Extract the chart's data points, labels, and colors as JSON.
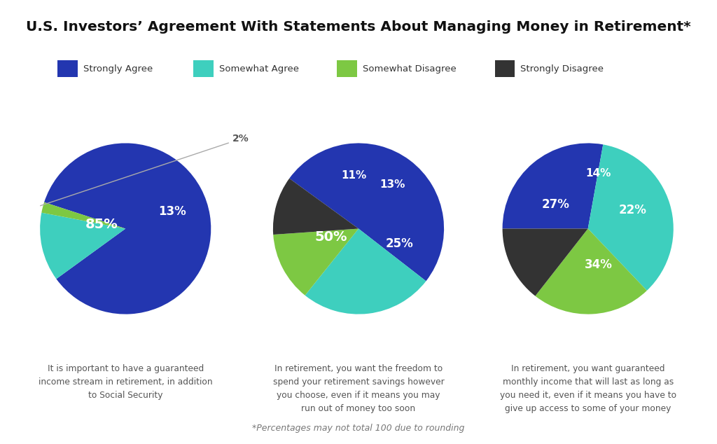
{
  "title": "U.S. Investors’ Agreement With Statements About Managing Money in Retirement*",
  "title_fontsize": 14.5,
  "background_color": "#ffffff",
  "legend_labels": [
    "Strongly Agree",
    "Somewhat Agree",
    "Somewhat Disagree",
    "Strongly Disagree"
  ],
  "colors": {
    "strongly_agree": "#2336B0",
    "somewhat_agree": "#3ECFBE",
    "somewhat_disagree": "#7DC843",
    "strongly_disagree": "#333333"
  },
  "charts": [
    {
      "slice_values": [
        85,
        13,
        2
      ],
      "slice_colors": [
        "strongly_agree",
        "somewhat_agree",
        "somewhat_disagree"
      ],
      "slice_labels": [
        "85%",
        "13%",
        "2%"
      ],
      "label_inside": [
        true,
        true,
        false
      ],
      "startangle": 162,
      "counterclock": false,
      "caption": "It is important to have a guaranteed\nincome stream in retirement, in addition\nto Social Security"
    },
    {
      "slice_values": [
        50,
        25,
        13,
        11
      ],
      "slice_colors": [
        "strongly_agree",
        "somewhat_agree",
        "somewhat_disagree",
        "strongly_disagree"
      ],
      "slice_labels": [
        "50%",
        "25%",
        "13%",
        "11%"
      ],
      "label_inside": [
        true,
        true,
        true,
        true
      ],
      "startangle": 144,
      "counterclock": false,
      "caption": "In retirement, you want the freedom to\nspend your retirement savings however\nyou choose, even if it means you may\nrun out of money too soon"
    },
    {
      "slice_values": [
        27,
        34,
        22,
        14
      ],
      "slice_colors": [
        "strongly_agree",
        "somewhat_agree",
        "somewhat_disagree",
        "strongly_disagree"
      ],
      "slice_labels": [
        "27%",
        "34%",
        "22%",
        "14%"
      ],
      "label_inside": [
        true,
        true,
        true,
        true
      ],
      "startangle": 180,
      "counterclock": false,
      "caption": "In retirement, you want guaranteed\nmonthly income that will last as long as\nyou need it, even if it means you have to\ngive up access to some of your money"
    }
  ],
  "footnote": "*Percentages may not total 100 due to rounding",
  "label_text_colors": {
    "inside_white": "#ffffff",
    "outside_dark": "#555555"
  }
}
